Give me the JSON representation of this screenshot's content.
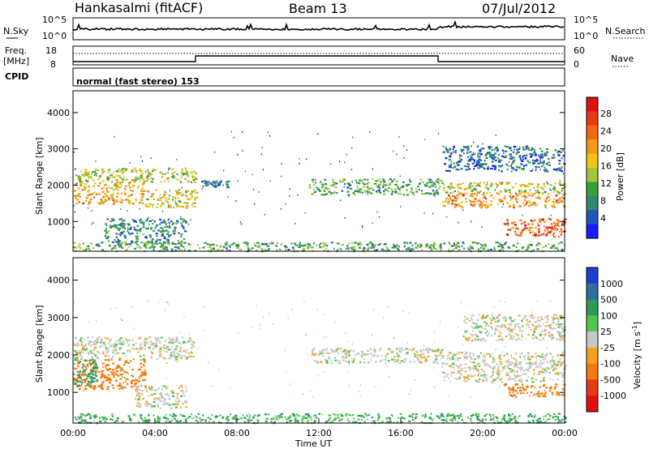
{
  "header": {
    "station": "Hankasalmi (fitACF)",
    "beam": "Beam 13",
    "date": "07/Jul/2012"
  },
  "top_panels": {
    "noise": {
      "left_label": "N.Sky",
      "right_label": "N.Search",
      "left_ticks": [
        "10^5",
        "10^0"
      ],
      "right_ticks": [
        "10^5",
        "10^0"
      ]
    },
    "freq": {
      "left_label": "Freq.",
      "left_unit": "[MHz]",
      "left_ticks": [
        "18",
        "8"
      ],
      "right_label": "Nave",
      "right_ticks": [
        "60",
        "0"
      ]
    },
    "cpid": {
      "label": "CPID",
      "text": "normal (fast stereo) 153"
    }
  },
  "chart_data": [
    {
      "type": "heatmap",
      "panel": "power",
      "ylabel": "Slant Range [km]",
      "xlabel": "",
      "xlim": [
        "00:00",
        "24:00"
      ],
      "ylim": [
        180,
        4600
      ],
      "y_ticks": [
        1000,
        2000,
        3000,
        4000
      ],
      "colorbar": {
        "label": "Power [dB]",
        "ticks": [
          "28",
          "24",
          "20",
          "16",
          "12",
          "8",
          "4"
        ],
        "range": [
          0,
          30
        ],
        "colors": [
          "#1a1aff",
          "#1f57b8",
          "#2e8a6a",
          "#37a03a",
          "#a4c43a",
          "#f2c41a",
          "#f59a14",
          "#f26a10",
          "#e83a12",
          "#e01010"
        ]
      },
      "bands": [
        {
          "t": [
            0.0,
            6.0
          ],
          "range": [
            2100,
            2500
          ],
          "power": 14
        },
        {
          "t": [
            0.0,
            3.5
          ],
          "range": [
            1500,
            2100
          ],
          "power": 18
        },
        {
          "t": [
            3.5,
            6.0
          ],
          "range": [
            1400,
            1900
          ],
          "power": 16
        },
        {
          "t": [
            1.5,
            5.5
          ],
          "range": [
            400,
            1100
          ],
          "power": 8
        },
        {
          "t": [
            6.2,
            7.6
          ],
          "range": [
            1950,
            2150
          ],
          "power": 6
        },
        {
          "t": [
            11.5,
            18.0
          ],
          "range": [
            1750,
            2200
          ],
          "power": 10
        },
        {
          "t": [
            18.0,
            24.0
          ],
          "range": [
            1400,
            1800
          ],
          "power": 20
        },
        {
          "t": [
            18.0,
            24.0
          ],
          "range": [
            1800,
            2100
          ],
          "power": 14
        },
        {
          "t": [
            18.0,
            24.0
          ],
          "range": [
            2400,
            3100
          ],
          "power": 6
        },
        {
          "t": [
            21.0,
            24.0
          ],
          "range": [
            600,
            1100
          ],
          "power": 24
        },
        {
          "t": [
            0.0,
            24.0
          ],
          "range": [
            200,
            450
          ],
          "power": 10
        }
      ]
    },
    {
      "type": "heatmap",
      "panel": "velocity",
      "ylabel": "Slant Range [km]",
      "xlabel": "Time UT",
      "xlim": [
        "00:00",
        "24:00"
      ],
      "ylim": [
        180,
        4600
      ],
      "y_ticks": [
        1000,
        2000,
        3000,
        4000
      ],
      "x_ticks": [
        "00:00",
        "04:00",
        "08:00",
        "12:00",
        "16:00",
        "20:00",
        "00:00"
      ],
      "colorbar": {
        "label": "Velocity [m s-1]",
        "label_main": "Velocity [m s",
        "label_sup": "-1",
        "label_end": "]",
        "ticks": [
          "1000",
          "500",
          "100",
          "25",
          "-25",
          "-100",
          "-500",
          "-1000"
        ],
        "colors": [
          "#1a3fd0",
          "#2e6e9e",
          "#2e9a5a",
          "#4fc44f",
          "#c8c8c8",
          "#f7a31a",
          "#f27a10",
          "#e83a12",
          "#e01010"
        ]
      },
      "bands": [
        {
          "t": [
            0.0,
            6.0
          ],
          "range": [
            1900,
            2500
          ],
          "velocity": 0
        },
        {
          "t": [
            0.0,
            3.5
          ],
          "range": [
            1100,
            1900
          ],
          "velocity": -150
        },
        {
          "t": [
            0.0,
            1.2
          ],
          "range": [
            1200,
            1900
          ],
          "velocity": 150
        },
        {
          "t": [
            3.0,
            5.5
          ],
          "range": [
            600,
            1200
          ],
          "velocity": 0
        },
        {
          "t": [
            11.5,
            18.0
          ],
          "range": [
            1800,
            2200
          ],
          "velocity": 0
        },
        {
          "t": [
            18.0,
            24.0
          ],
          "range": [
            1300,
            2100
          ],
          "velocity": 0
        },
        {
          "t": [
            19.0,
            24.0
          ],
          "range": [
            2400,
            3100
          ],
          "velocity": 0
        },
        {
          "t": [
            21.0,
            24.0
          ],
          "range": [
            900,
            1250
          ],
          "velocity": -200
        },
        {
          "t": [
            0.0,
            24.0
          ],
          "range": [
            200,
            450
          ],
          "velocity": 60
        }
      ]
    }
  ]
}
